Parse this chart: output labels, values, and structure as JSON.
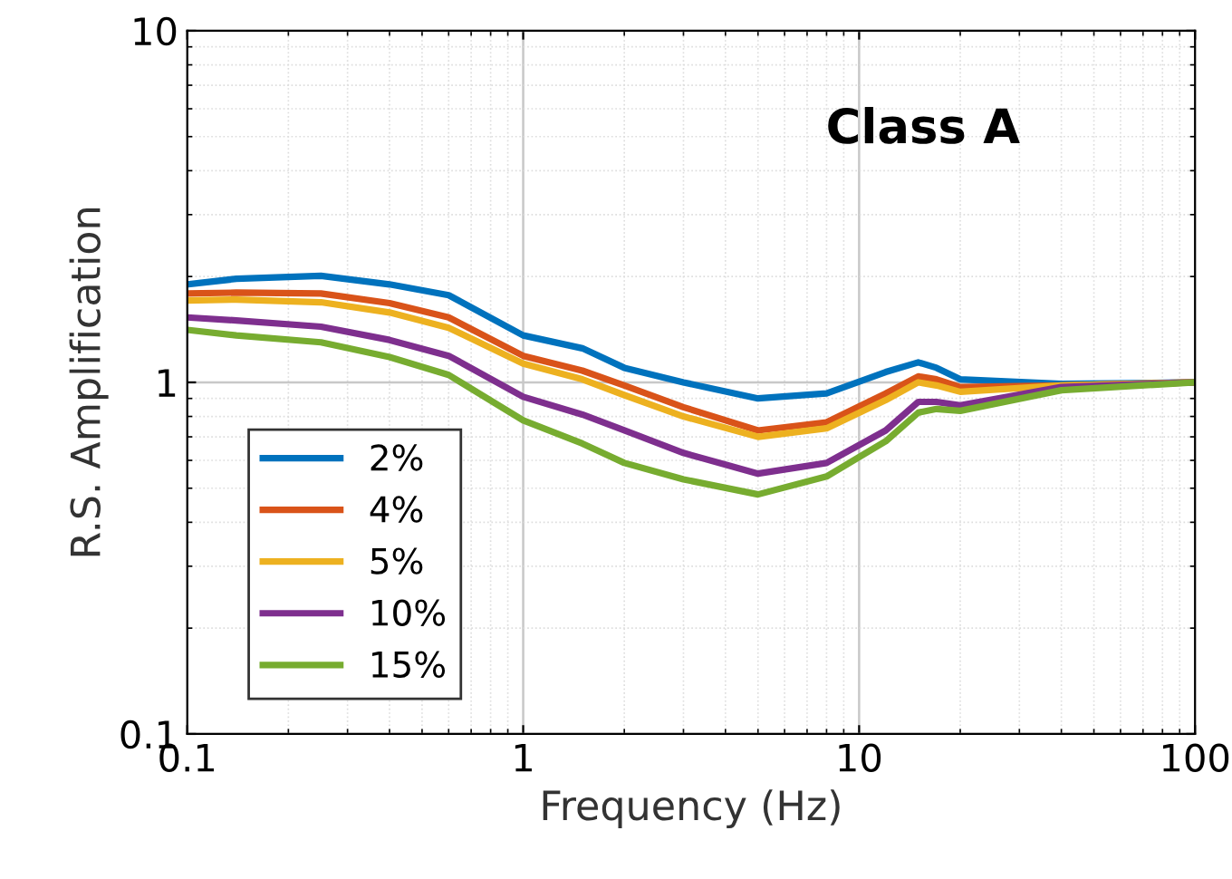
{
  "chart_data": {
    "type": "line",
    "xlabel": "Frequency (Hz)",
    "ylabel": "R.S. Amplification",
    "annotations": [
      "Class A"
    ],
    "log": "xy",
    "grid": true,
    "legend": "bottom left",
    "marker": "none",
    "line_style": "solid",
    "x": [
      0.1,
      0.14,
      0.25,
      0.4,
      0.6,
      1,
      1.5,
      2,
      3,
      5,
      8,
      12,
      15,
      17,
      20,
      40,
      100
    ],
    "xlim": [
      0.1,
      100
    ],
    "xticks": [
      0.1,
      1,
      10,
      100
    ],
    "ylim": [
      0.1,
      10
    ],
    "yticks": [
      0.1,
      1,
      10
    ],
    "series": [
      {
        "name": "2%",
        "color": "#0072bd",
        "values": [
          1.9,
          1.97,
          2.01,
          1.9,
          1.77,
          1.36,
          1.25,
          1.1,
          1.0,
          0.9,
          0.93,
          1.07,
          1.14,
          1.1,
          1.02,
          0.99,
          1.0
        ]
      },
      {
        "name": "4%",
        "color": "#d95319",
        "values": [
          1.79,
          1.8,
          1.79,
          1.68,
          1.53,
          1.19,
          1.08,
          0.98,
          0.85,
          0.73,
          0.77,
          0.93,
          1.04,
          1.02,
          0.97,
          0.98,
          1.0
        ]
      },
      {
        "name": "5%",
        "color": "#edb120",
        "values": [
          1.71,
          1.72,
          1.69,
          1.58,
          1.43,
          1.13,
          1.02,
          0.92,
          0.8,
          0.7,
          0.74,
          0.89,
          1.0,
          0.98,
          0.94,
          0.98,
          1.0
        ]
      },
      {
        "name": "10%",
        "color": "#7e2f8e",
        "values": [
          1.53,
          1.5,
          1.44,
          1.32,
          1.19,
          0.91,
          0.81,
          0.73,
          0.63,
          0.55,
          0.59,
          0.73,
          0.88,
          0.88,
          0.86,
          0.97,
          1.0
        ]
      },
      {
        "name": "15%",
        "color": "#77ac30",
        "values": [
          1.41,
          1.36,
          1.3,
          1.18,
          1.05,
          0.78,
          0.67,
          0.59,
          0.53,
          0.48,
          0.54,
          0.68,
          0.82,
          0.84,
          0.83,
          0.95,
          1.0
        ]
      }
    ]
  }
}
